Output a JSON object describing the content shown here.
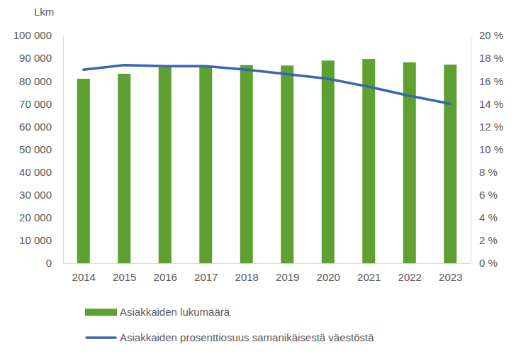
{
  "chart_data": {
    "type": "bar",
    "ylabel": "Lkm",
    "categories": [
      "2014",
      "2015",
      "2016",
      "2017",
      "2018",
      "2019",
      "2020",
      "2021",
      "2022",
      "2023"
    ],
    "series": [
      {
        "name": "Asiakkaiden lukumäärä",
        "type": "bar",
        "color": "#5ea032",
        "values": [
          81000,
          83200,
          86000,
          86500,
          87000,
          86800,
          89000,
          89700,
          88200,
          87200
        ]
      },
      {
        "name": "Asiakkaiden prosenttiosuus samanikäisestä väestöstä",
        "type": "line",
        "axis": "y2",
        "color": "#3a65b0",
        "values": [
          17.0,
          17.4,
          17.3,
          17.3,
          17.0,
          16.6,
          16.2,
          15.5,
          14.7,
          14.0
        ]
      }
    ],
    "ylim": [
      0,
      100000
    ],
    "yticks": [
      {
        "value": 0,
        "label": "0"
      },
      {
        "value": 10000,
        "label": "10 000"
      },
      {
        "value": 20000,
        "label": "20 000"
      },
      {
        "value": 30000,
        "label": "30 000"
      },
      {
        "value": 40000,
        "label": "40 000"
      },
      {
        "value": 50000,
        "label": "50 000"
      },
      {
        "value": 60000,
        "label": "60 000"
      },
      {
        "value": 70000,
        "label": "70 000"
      },
      {
        "value": 80000,
        "label": "80 000"
      },
      {
        "value": 90000,
        "label": "90 000"
      },
      {
        "value": 100000,
        "label": "100 000"
      }
    ],
    "y2lim": [
      0,
      20
    ],
    "y2ticks": [
      {
        "value": 0,
        "label": "0 %"
      },
      {
        "value": 2,
        "label": "2 %"
      },
      {
        "value": 4,
        "label": "4 %"
      },
      {
        "value": 6,
        "label": "6 %"
      },
      {
        "value": 8,
        "label": "8 %"
      },
      {
        "value": 10,
        "label": "10 %"
      },
      {
        "value": 12,
        "label": "12 %"
      },
      {
        "value": 14,
        "label": "14 %"
      },
      {
        "value": 16,
        "label": "16 %"
      },
      {
        "value": 18,
        "label": "18 %"
      },
      {
        "value": 20,
        "label": "20 %"
      }
    ],
    "legend": "bottom"
  }
}
